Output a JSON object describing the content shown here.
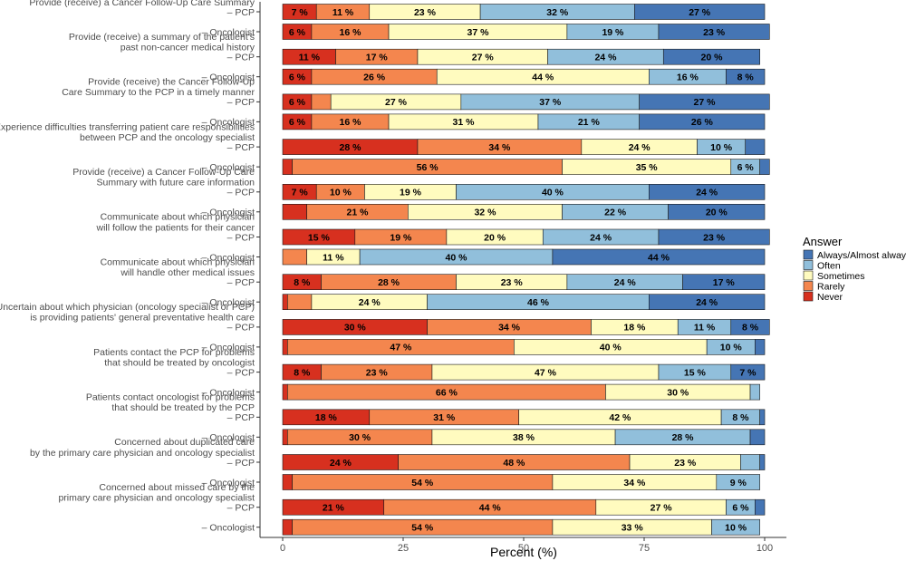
{
  "chart_data": {
    "type": "bar",
    "orientation": "horizontal-stacked",
    "xlabel": "Percent (%)",
    "xlim": [
      0,
      100
    ],
    "xticks": [
      0,
      25,
      50,
      75,
      100
    ],
    "legend": {
      "title": "Answer",
      "position": "right",
      "entries": [
        "Always/Almost always",
        "Often",
        "Sometimes",
        "Rarely",
        "Never"
      ]
    },
    "colors": {
      "Never": "#d7301f",
      "Rarely": "#f4864e",
      "Sometimes": "#fffbbf",
      "Often": "#91bfdb",
      "Always/Almost always": "#4575b4"
    },
    "stack_order": [
      "Never",
      "Rarely",
      "Sometimes",
      "Often",
      "Always/Almost always"
    ],
    "groups": [
      {
        "question": [
          "Provide (receive) a Cancer Follow-Up Care Summary"
        ],
        "bars": [
          {
            "label": "– PCP",
            "values": [
              7,
              11,
              23,
              32,
              27
            ],
            "labels": [
              "7 %",
              "11 %",
              "23 %",
              "32 %",
              "27 %"
            ]
          },
          {
            "label": "– Oncologist",
            "values": [
              6,
              16,
              37,
              19,
              23
            ],
            "labels": [
              "6 %",
              "16 %",
              "37 %",
              "19 %",
              "23 %"
            ]
          }
        ]
      },
      {
        "question": [
          "Provide (receive) a summary of the patient's",
          "past non-cancer medical history"
        ],
        "bars": [
          {
            "label": "– PCP",
            "values": [
              11,
              17,
              27,
              24,
              20
            ],
            "labels": [
              "11 %",
              "17 %",
              "27 %",
              "24 %",
              "20 %"
            ]
          },
          {
            "label": "– Oncologist",
            "values": [
              6,
              26,
              44,
              16,
              8
            ],
            "labels": [
              "6 %",
              "26 %",
              "44 %",
              "16 %",
              "8 %"
            ]
          }
        ]
      },
      {
        "question": [
          "Provide (receive) the Cancer Follow-Up",
          "Care Summary to the PCP in a timely manner"
        ],
        "bars": [
          {
            "label": "– PCP",
            "values": [
              6,
              4,
              27,
              37,
              27
            ],
            "labels": [
              "6 %",
              "",
              "27 %",
              "37 %",
              "27 %"
            ]
          },
          {
            "label": "– Oncologist",
            "values": [
              6,
              16,
              31,
              21,
              26
            ],
            "labels": [
              "6 %",
              "16 %",
              "31 %",
              "21 %",
              "26 %"
            ]
          }
        ]
      },
      {
        "question": [
          "Experience difficulties transferring patient care responsibilities",
          "between PCP and the oncology specialist"
        ],
        "bars": [
          {
            "label": "– PCP",
            "values": [
              28,
              34,
              24,
              10,
              4
            ],
            "labels": [
              "28 %",
              "34 %",
              "24 %",
              "10 %",
              ""
            ]
          },
          {
            "label": "– Oncologist",
            "values": [
              2,
              56,
              35,
              6,
              2
            ],
            "labels": [
              "",
              "56 %",
              "35 %",
              "6 %",
              ""
            ]
          }
        ]
      },
      {
        "question": [
          "Provide (receive) a Cancer Follow-Up Care",
          "Summary with future care information"
        ],
        "bars": [
          {
            "label": "– PCP",
            "values": [
              7,
              10,
              19,
              40,
              24
            ],
            "labels": [
              "7 %",
              "10 %",
              "19 %",
              "40 %",
              "24 %"
            ]
          },
          {
            "label": "– Oncologist",
            "values": [
              5,
              21,
              32,
              22,
              20
            ],
            "labels": [
              "",
              "21 %",
              "32 %",
              "22 %",
              "20 %"
            ]
          }
        ]
      },
      {
        "question": [
          "Communicate about which physician",
          "will follow the patients for their cancer"
        ],
        "bars": [
          {
            "label": "– PCP",
            "values": [
              15,
              19,
              20,
              24,
              23
            ],
            "labels": [
              "15 %",
              "19 %",
              "20 %",
              "24 %",
              "23 %"
            ]
          },
          {
            "label": "– Oncologist",
            "values": [
              0,
              5,
              11,
              40,
              44
            ],
            "labels": [
              "",
              "",
              "11 %",
              "40 %",
              "44 %"
            ]
          }
        ]
      },
      {
        "question": [
          "Communicate about which physician",
          "will handle other medical issues"
        ],
        "bars": [
          {
            "label": "– PCP",
            "values": [
              8,
              28,
              23,
              24,
              17
            ],
            "labels": [
              "8 %",
              "28 %",
              "23 %",
              "24 %",
              "17 %"
            ]
          },
          {
            "label": "– Oncologist",
            "values": [
              1,
              5,
              24,
              46,
              24
            ],
            "labels": [
              "",
              "",
              "24 %",
              "46 %",
              "24 %"
            ]
          }
        ]
      },
      {
        "question": [
          "Uncertain about which physician (oncology specialist or PCP)",
          "is providing patients' general preventative health care"
        ],
        "bars": [
          {
            "label": "– PCP",
            "values": [
              30,
              34,
              18,
              11,
              8
            ],
            "labels": [
              "30 %",
              "34 %",
              "18 %",
              "11 %",
              "8 %"
            ]
          },
          {
            "label": "– Oncologist",
            "values": [
              1,
              47,
              40,
              10,
              2
            ],
            "labels": [
              "",
              "47 %",
              "40 %",
              "10 %",
              ""
            ]
          }
        ]
      },
      {
        "question": [
          "Patients contact the PCP for problems",
          "that should be treated by oncologist"
        ],
        "bars": [
          {
            "label": "– PCP",
            "values": [
              8,
              23,
              47,
              15,
              7
            ],
            "labels": [
              "8 %",
              "23 %",
              "47 %",
              "15 %",
              "7 %"
            ]
          },
          {
            "label": "– Oncologist",
            "values": [
              1,
              66,
              30,
              2,
              0
            ],
            "labels": [
              "",
              "66 %",
              "30 %",
              "",
              ""
            ]
          }
        ]
      },
      {
        "question": [
          "Patients contact oncologist for problems",
          "that should be treated by the PCP"
        ],
        "bars": [
          {
            "label": "– PCP",
            "values": [
              18,
              31,
              42,
              8,
              1
            ],
            "labels": [
              "18 %",
              "31 %",
              "42 %",
              "8 %",
              ""
            ]
          },
          {
            "label": "– Oncologist",
            "values": [
              1,
              30,
              38,
              28,
              3
            ],
            "labels": [
              "",
              "30 %",
              "38 %",
              "28 %",
              ""
            ]
          }
        ]
      },
      {
        "question": [
          "Concerned about duplicated care",
          "by the primary care physician and oncology specialist"
        ],
        "bars": [
          {
            "label": "– PCP",
            "values": [
              24,
              48,
              23,
              4,
              1
            ],
            "labels": [
              "24 %",
              "48 %",
              "23 %",
              "",
              ""
            ]
          },
          {
            "label": "– Oncologist",
            "values": [
              2,
              54,
              34,
              9,
              0
            ],
            "labels": [
              "",
              "54 %",
              "34 %",
              "9 %",
              ""
            ]
          }
        ]
      },
      {
        "question": [
          "Concerned about missed care by the",
          "primary care physician and oncology specialist"
        ],
        "bars": [
          {
            "label": "– PCP",
            "values": [
              21,
              44,
              27,
              6,
              2
            ],
            "labels": [
              "21 %",
              "44 %",
              "27 %",
              "6 %",
              ""
            ]
          },
          {
            "label": "– Oncologist",
            "values": [
              2,
              54,
              33,
              10,
              0
            ],
            "labels": [
              "",
              "54 %",
              "33 %",
              "10 %",
              ""
            ]
          }
        ]
      }
    ]
  }
}
